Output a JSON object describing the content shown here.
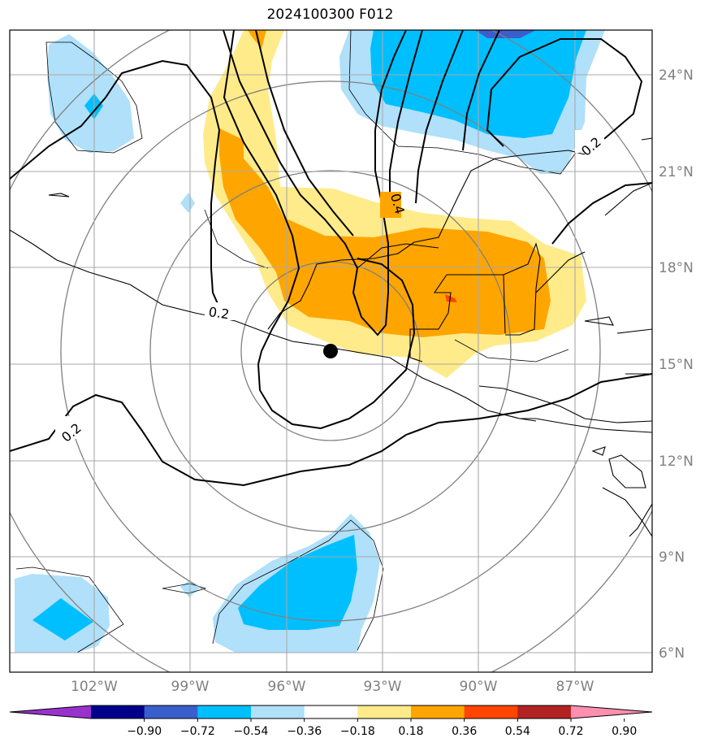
{
  "title": "2024100300 F012",
  "lat_labels": [
    "24°N",
    "21°N",
    "18°N",
    "15°N",
    "12°N",
    "9°N",
    "6°N"
  ],
  "lon_labels": [
    "102°W",
    "99°W",
    "96°W",
    "93°W",
    "90°W",
    "87°W"
  ],
  "contour_labels": [
    "0.2",
    "0.2",
    "0.4",
    "0.2"
  ],
  "colorbar_ticks": [
    "−0.90",
    "−0.72",
    "−0.54",
    "−0.36",
    "−0.18",
    "0.18",
    "0.36",
    "0.54",
    "0.72",
    "0.90"
  ],
  "colorbar_colors": [
    "#9932cc",
    "#00008b",
    "#3a5fcd",
    "#00bfff",
    "#b0e0fa",
    "#ffffff",
    "#ffeb8a",
    "#ffa500",
    "#ff4500",
    "#b22222",
    "#ff8fb0"
  ],
  "shading_colors": {
    "light_yellow": "#ffeb8a",
    "orange": "#ffa500",
    "red_orange": "#ff4500",
    "light_blue": "#b0e0fa",
    "blue": "#00bfff",
    "royal_blue": "#3a5fcd"
  },
  "marker": "storm-center-dot"
}
